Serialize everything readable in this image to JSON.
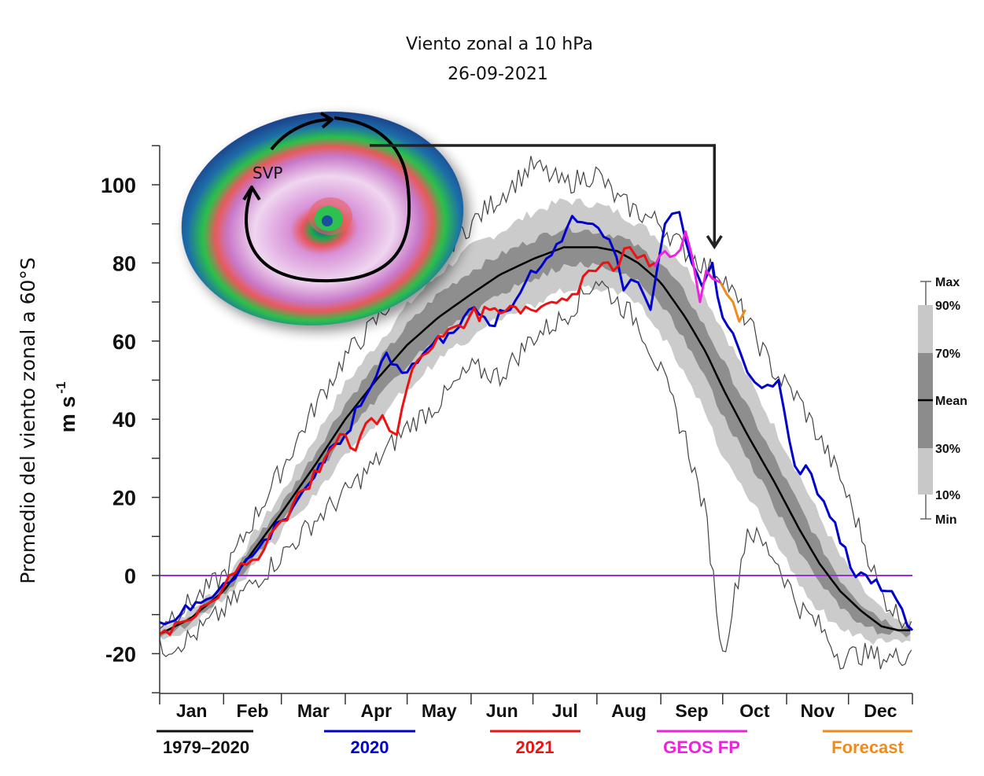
{
  "chart_data": {
    "type": "line",
    "title": "",
    "ylabel": "Promedio del viento zonal a 60°S",
    "yunit": "m s",
    "yunit_exp": "-1",
    "xlabel": "",
    "ylim": [
      -30,
      110
    ],
    "yticks": [
      100,
      80,
      60,
      40,
      20,
      0,
      -20
    ],
    "ytick_labels": [
      "100",
      "80",
      "60",
      "40",
      "20",
      "0",
      "-20"
    ],
    "xlim_day": [
      0,
      365
    ],
    "months": [
      "Jan",
      "Feb",
      "Mar",
      "Apr",
      "May",
      "Jun",
      "Jul",
      "Aug",
      "Sep",
      "Oct",
      "Nov",
      "Dec"
    ],
    "zero_line": {
      "value": 0,
      "color": "#9b30d9"
    },
    "inset": {
      "title_line1": "Viento zonal a 10 hPa",
      "title_line2": "26-09-2021",
      "label": "SVP",
      "description": "Southern polar vortex map (polar stereographic wind speed)",
      "arrow_target_day": 269
    },
    "percentile_legend": {
      "labels": [
        "Max",
        "90%",
        "70%",
        "Mean",
        "30%",
        "10%",
        "Min"
      ],
      "band_colors": {
        "outer": "#c8c8c8",
        "inner": "#8c8c8c",
        "mean": "#000000"
      }
    },
    "legend": [
      {
        "label": "1979–2020",
        "color": "#111111"
      },
      {
        "label": "2020",
        "color": "#0000cc"
      },
      {
        "label": "2021",
        "color": "#ee1111"
      },
      {
        "label": "GEOS FP",
        "color": "#ee22dd"
      },
      {
        "label": "Forecast",
        "color": "#f08a1c"
      }
    ],
    "climatology": {
      "days": [
        0,
        15,
        31,
        45,
        59,
        75,
        90,
        105,
        120,
        135,
        151,
        165,
        181,
        196,
        212,
        222,
        232,
        243,
        255,
        265,
        273,
        285,
        298,
        310,
        320,
        330,
        340,
        350,
        358,
        365
      ],
      "mean": [
        -15,
        -11,
        -4,
        6,
        16,
        28,
        40,
        50,
        59,
        66,
        72,
        77,
        81,
        84,
        84,
        83,
        80,
        75,
        66,
        57,
        48,
        36,
        24,
        12,
        3,
        -4,
        -9,
        -13,
        -14,
        -14
      ],
      "p70": [
        -14,
        -10,
        -3,
        8,
        18,
        31,
        44,
        54,
        64,
        72,
        78,
        82,
        86,
        89,
        88,
        87,
        84,
        80,
        72,
        63,
        55,
        43,
        30,
        18,
        8,
        -1,
        -7,
        -11,
        -13,
        -13
      ],
      "p30": [
        -16,
        -12,
        -5,
        4,
        14,
        25,
        36,
        45,
        54,
        61,
        67,
        72,
        76,
        79,
        80,
        78,
        75,
        70,
        60,
        50,
        41,
        30,
        18,
        6,
        -2,
        -8,
        -12,
        -15,
        -15,
        -15
      ],
      "p90": [
        -13,
        -9,
        -2,
        10,
        21,
        35,
        49,
        59,
        69,
        77,
        84,
        88,
        93,
        96,
        95,
        93,
        90,
        86,
        79,
        71,
        63,
        51,
        38,
        26,
        15,
        5,
        -3,
        -9,
        -12,
        -12
      ],
      "p10": [
        -17,
        -13,
        -6,
        2,
        11,
        21,
        31,
        39,
        48,
        55,
        61,
        66,
        69,
        73,
        74,
        72,
        70,
        62,
        52,
        41,
        31,
        21,
        9,
        -2,
        -9,
        -13,
        -16,
        -17,
        -17,
        -17
      ],
      "max": [
        -12,
        -7,
        0,
        14,
        27,
        43,
        56,
        65,
        76,
        82,
        90,
        97,
        105,
        100,
        103,
        96,
        93,
        90,
        83,
        79,
        77,
        65,
        52,
        45,
        35,
        25,
        11,
        -5,
        -10,
        -12
      ],
      "min": [
        -19,
        -16,
        -9,
        -2,
        5,
        14,
        21,
        29,
        38,
        44,
        53,
        51,
        61,
        66,
        76,
        70,
        65,
        52,
        35,
        15,
        -21,
        12,
        5,
        -8,
        -13,
        -21,
        -20,
        -21,
        -21,
        -19
      ]
    },
    "series": [
      {
        "name": "2020",
        "color": "#0000cc",
        "days": [
          0,
          10,
          20,
          31,
          45,
          59,
          70,
          80,
          90,
          100,
          110,
          120,
          130,
          140,
          150,
          160,
          170,
          180,
          190,
          200,
          210,
          218,
          225,
          232,
          238,
          245,
          252,
          258,
          263,
          268,
          273,
          278,
          285,
          292,
          300,
          308,
          316,
          325,
          335,
          345,
          355,
          365
        ],
        "values": [
          -12,
          -10,
          -7,
          -2,
          5,
          14,
          22,
          29,
          36,
          46,
          57,
          52,
          58,
          62,
          68,
          64,
          68,
          78,
          82,
          92,
          90,
          86,
          73,
          75,
          68,
          90,
          93,
          80,
          74,
          80,
          66,
          62,
          52,
          48,
          50,
          28,
          26,
          15,
          2,
          -2,
          -4,
          -14
        ]
      },
      {
        "name": "2021",
        "color": "#ee1111",
        "days": [
          0,
          10,
          20,
          31,
          45,
          59,
          70,
          80,
          90,
          95,
          100,
          108,
          115,
          120,
          125,
          130,
          140,
          150,
          160,
          170,
          180,
          190,
          200,
          208,
          215,
          220,
          228,
          235,
          240
        ],
        "values": [
          -15,
          -12,
          -8,
          -3,
          4,
          14,
          22,
          30,
          36,
          32,
          39,
          41,
          36,
          48,
          55,
          57,
          63,
          66,
          68,
          69,
          68,
          70,
          72,
          78,
          80,
          78,
          84,
          82,
          80
        ]
      },
      {
        "name": "GEOS FP",
        "color": "#ee22dd",
        "days": [
          240,
          245,
          250,
          255,
          258,
          262,
          265,
          268,
          272
        ],
        "values": [
          79,
          83,
          82,
          88,
          82,
          70,
          78,
          76,
          75
        ]
      },
      {
        "name": "Forecast",
        "color": "#f08a1c",
        "days": [
          272,
          275,
          278,
          281,
          284
        ],
        "values": [
          75,
          72,
          70,
          65,
          68
        ]
      }
    ]
  }
}
